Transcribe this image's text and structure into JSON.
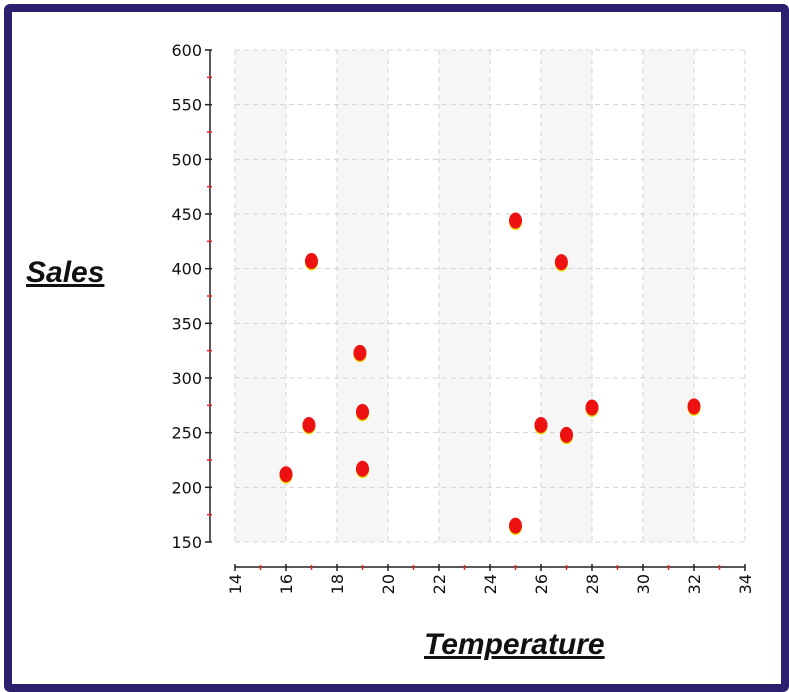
{
  "chart_data": {
    "type": "scatter",
    "xlabel": "Temperature",
    "ylabel": "Sales",
    "xlim": [
      14,
      34
    ],
    "ylim": [
      150,
      600
    ],
    "xticks": [
      14,
      16,
      18,
      20,
      22,
      24,
      26,
      28,
      30,
      32,
      34
    ],
    "yticks": [
      150,
      200,
      250,
      300,
      350,
      400,
      450,
      500,
      550,
      600
    ],
    "grid": true,
    "points": [
      {
        "x": 16,
        "y": 212
      },
      {
        "x": 16.9,
        "y": 257
      },
      {
        "x": 17,
        "y": 407
      },
      {
        "x": 18.9,
        "y": 323
      },
      {
        "x": 19,
        "y": 217
      },
      {
        "x": 19,
        "y": 269
      },
      {
        "x": 25,
        "y": 444
      },
      {
        "x": 25,
        "y": 165
      },
      {
        "x": 26,
        "y": 257
      },
      {
        "x": 26.8,
        "y": 406
      },
      {
        "x": 27,
        "y": 248
      },
      {
        "x": 28,
        "y": 273
      },
      {
        "x": 32,
        "y": 274
      }
    ],
    "colors": {
      "point": "#ee1111",
      "point_edge": "#e8e000",
      "grid": "#d4d4d4",
      "minor_tick": "#ee2222",
      "frame": "#2e1f6e"
    }
  }
}
